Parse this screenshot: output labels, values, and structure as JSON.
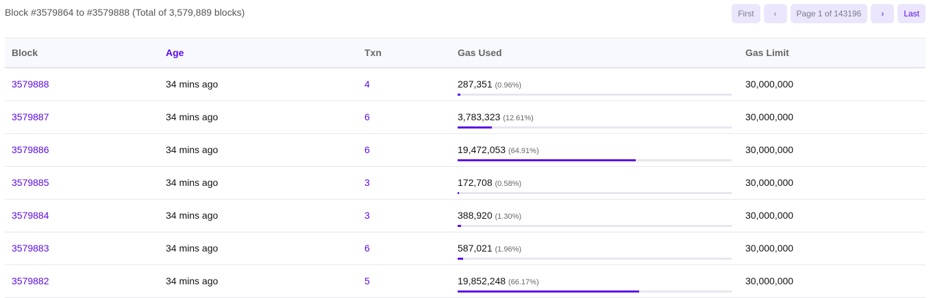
{
  "summary": "Block #3579864 to #3579888 (Total of 3,579,889 blocks)",
  "pager": {
    "first": "First",
    "prev": "‹",
    "page": "Page 1 of 143196",
    "next": "›",
    "last": "Last"
  },
  "colors": {
    "accent": "#5b0ae6"
  },
  "columns": [
    "Block",
    "Age",
    "Txn",
    "Gas Used",
    "Gas Limit"
  ],
  "rows": [
    {
      "block": "3579888",
      "age": "34 mins ago",
      "txn": "4",
      "gas_used": "287,351",
      "pct": "(0.96%)",
      "fill": 0.96,
      "gas_limit": "30,000,000"
    },
    {
      "block": "3579887",
      "age": "34 mins ago",
      "txn": "6",
      "gas_used": "3,783,323",
      "pct": "(12.61%)",
      "fill": 12.61,
      "gas_limit": "30,000,000"
    },
    {
      "block": "3579886",
      "age": "34 mins ago",
      "txn": "6",
      "gas_used": "19,472,053",
      "pct": "(64.91%)",
      "fill": 64.91,
      "gas_limit": "30,000,000"
    },
    {
      "block": "3579885",
      "age": "34 mins ago",
      "txn": "3",
      "gas_used": "172,708",
      "pct": "(0.58%)",
      "fill": 0.58,
      "gas_limit": "30,000,000"
    },
    {
      "block": "3579884",
      "age": "34 mins ago",
      "txn": "3",
      "gas_used": "388,920",
      "pct": "(1.30%)",
      "fill": 1.3,
      "gas_limit": "30,000,000"
    },
    {
      "block": "3579883",
      "age": "34 mins ago",
      "txn": "6",
      "gas_used": "587,021",
      "pct": "(1.96%)",
      "fill": 1.96,
      "gas_limit": "30,000,000"
    },
    {
      "block": "3579882",
      "age": "34 mins ago",
      "txn": "5",
      "gas_used": "19,852,248",
      "pct": "(66.17%)",
      "fill": 66.17,
      "gas_limit": "30,000,000"
    }
  ]
}
